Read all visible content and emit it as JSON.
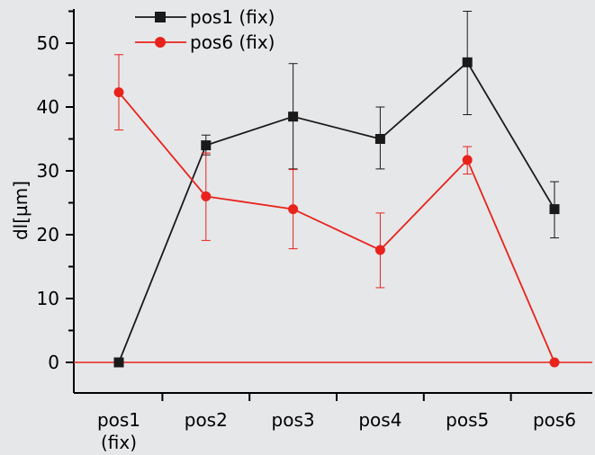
{
  "chart_data": {
    "type": "line",
    "categories": [
      "pos1\n(fix)",
      "pos2",
      "pos3",
      "pos4",
      "pos5",
      "pos6"
    ],
    "ylabel": "dl[µm]",
    "xlabel": "",
    "ylim": [
      -5,
      55
    ],
    "yticks": [
      0,
      10,
      20,
      30,
      40,
      50
    ],
    "grid": false,
    "legend_position": "top-left",
    "series": [
      {
        "name": "pos1 (fix)",
        "color": "#1a1a1a",
        "marker": "square",
        "values": [
          0,
          34,
          38.5,
          35,
          47,
          24
        ],
        "error_low": [
          null,
          32.5,
          30.3,
          30.3,
          38.8,
          19.5
        ],
        "error_high": [
          null,
          35.6,
          46.8,
          40,
          55,
          28.3
        ]
      },
      {
        "name": "pos6 (fix)",
        "color": "#e8231c",
        "marker": "circle",
        "values": [
          42.3,
          26,
          24,
          17.6,
          31.7,
          0
        ],
        "error_low": [
          36.4,
          19.1,
          17.8,
          11.7,
          29.5,
          null
        ],
        "error_high": [
          48.2,
          32.8,
          30.2,
          23.4,
          33.8,
          null
        ]
      }
    ],
    "reference_line": {
      "y": 0,
      "color": "#e8231c"
    }
  }
}
